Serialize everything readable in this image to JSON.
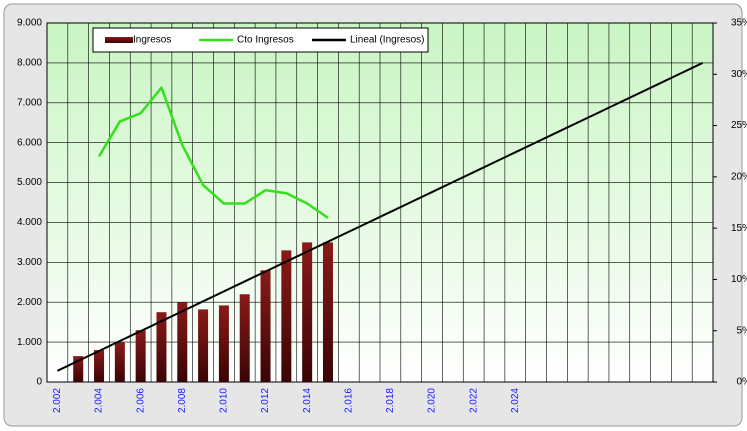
{
  "chart_data": {
    "type": "bar",
    "categories": [
      "2.002",
      null,
      "2.004",
      null,
      "2.006",
      null,
      "2.008",
      null,
      "2.010",
      null,
      "2.012",
      null,
      "2.014",
      null,
      "2.016",
      null,
      "2.018",
      null,
      "2.020",
      null,
      "2.022",
      null,
      "2.024",
      null,
      null,
      null,
      null,
      null,
      null,
      null,
      null,
      null
    ],
    "series": [
      {
        "name": "Ingresos",
        "type": "bar",
        "color": "#6b0c0c",
        "values": [
          null,
          650,
          800,
          1000,
          1300,
          1750,
          2000,
          1820,
          1920,
          2200,
          2800,
          3300,
          3500,
          3500,
          null,
          null,
          null,
          null,
          null,
          null,
          null,
          null,
          null,
          null,
          null,
          null,
          null,
          null,
          null,
          null,
          null,
          null
        ]
      },
      {
        "name": "Cto Ingresos",
        "type": "line",
        "axis": "y2",
        "color": "#33e01a",
        "values": [
          null,
          null,
          22,
          25.4,
          26.2,
          28.7,
          23.1,
          19.2,
          17.4,
          17.4,
          18.7,
          18.4,
          17.4,
          16,
          null,
          null,
          null,
          null,
          null,
          null,
          null,
          null,
          null,
          null,
          null,
          null,
          null,
          null,
          null,
          null,
          null,
          null
        ]
      },
      {
        "name": "Lineal (Ingresos)",
        "type": "line",
        "color": "#000000",
        "values": [
          280,
          529,
          778,
          1027,
          1276,
          1525,
          1774,
          2023,
          2272,
          2521,
          2770,
          3019,
          3268,
          3517,
          3766,
          4015,
          4264,
          4513,
          4762,
          5011,
          5260,
          5509,
          5758,
          6007,
          6256,
          6505,
          6754,
          7003,
          7252,
          7501,
          7750,
          7999
        ]
      }
    ],
    "ylim": [
      0,
      9000
    ],
    "yticks": [
      0,
      {
        "value": 1000,
        "label": "1.000"
      },
      {
        "value": 2000,
        "label": "2.000"
      },
      {
        "value": 3000,
        "label": "3.000"
      },
      {
        "value": 4000,
        "label": "4.000"
      },
      {
        "value": 5000,
        "label": "5.000"
      },
      {
        "value": 6000,
        "label": "6.000"
      },
      {
        "value": 7000,
        "label": "7.000"
      },
      {
        "value": 8000,
        "label": "8.000"
      },
      {
        "value": 9000,
        "label": "9.000"
      }
    ],
    "y2lim": [
      0,
      35
    ],
    "y2ticks": [
      {
        "value": 0,
        "label": "0%"
      },
      {
        "value": 5,
        "label": "5%"
      },
      {
        "value": 10,
        "label": "10%"
      },
      {
        "value": 15,
        "label": "15%"
      },
      {
        "value": 20,
        "label": "20%"
      },
      {
        "value": 25,
        "label": "25%"
      },
      {
        "value": 30,
        "label": "30%"
      },
      {
        "value": 35,
        "label": "35%"
      }
    ],
    "grid": true,
    "legend": "top"
  }
}
